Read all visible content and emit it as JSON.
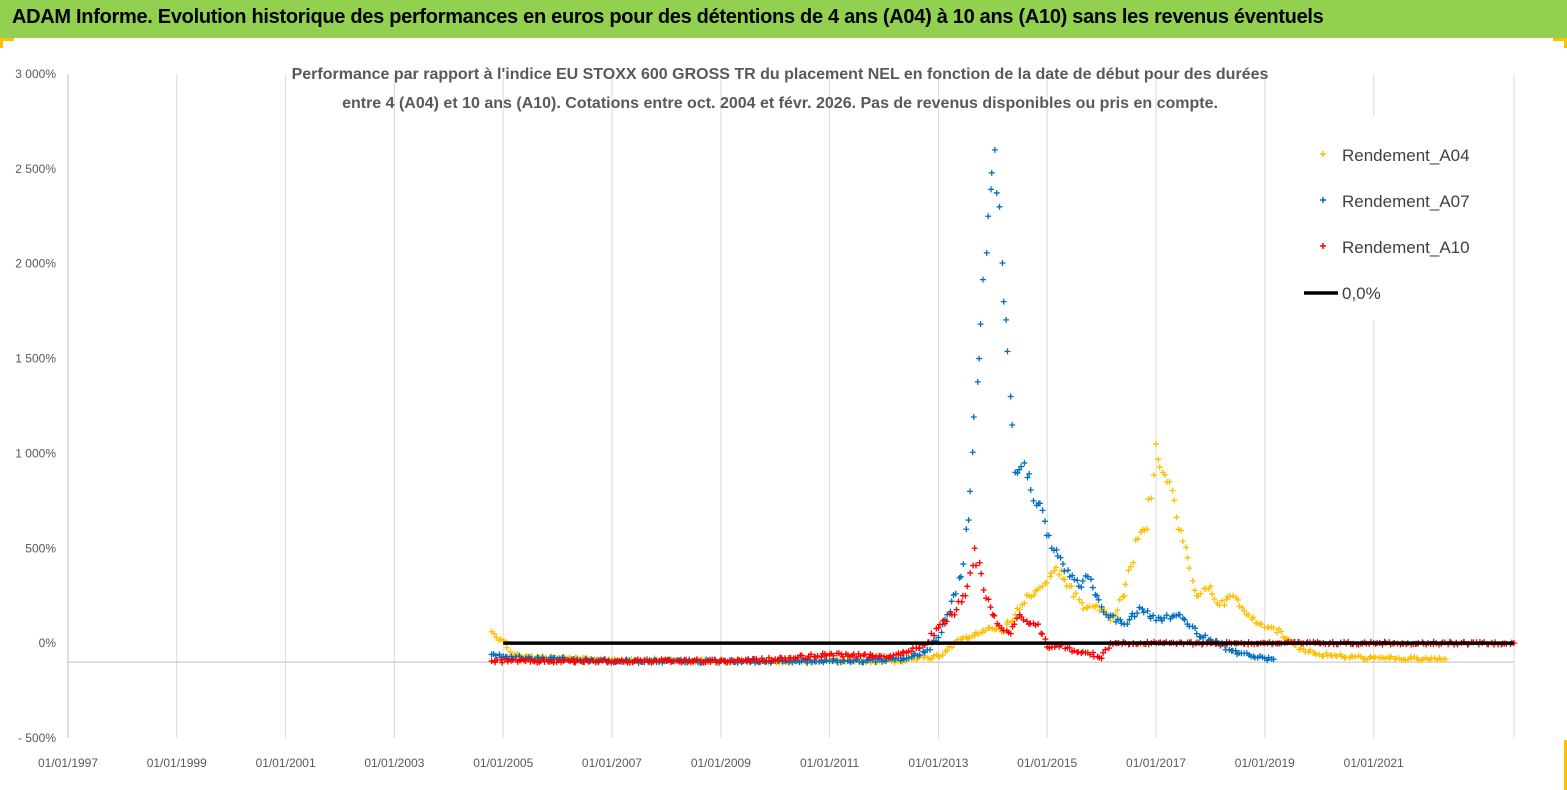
{
  "banner": {
    "title": "ADAM Informe. Evolution historique des performances en euros pour des détentions de 4 ans (A04) à 10 ans (A10) sans les revenus éventuels",
    "background": "#92d050",
    "accent": "#ffc000"
  },
  "chart_data": {
    "type": "scatter",
    "title_lines": [
      "Performance par rapport à l'indice EU STOXX 600 GROSS TR  du placement NEL en fonction de la date de début pour des durées",
      "entre 4 (A04) et 10 ans (A10). Cotations entre oct. 2004 et févr. 2026. Pas de revenus disponibles ou pris en compte."
    ],
    "xlabel": "",
    "ylabel": "",
    "x_range": [
      "1997-01-01",
      "2023-08-01"
    ],
    "x_ticks": [
      "01/01/1997",
      "01/01/1999",
      "01/01/2001",
      "01/01/2003",
      "01/01/2005",
      "01/01/2007",
      "01/01/2009",
      "01/01/2011",
      "01/01/2013",
      "01/01/2015",
      "01/01/2017",
      "01/01/2019",
      "01/01/2021"
    ],
    "y_range": [
      -500,
      3000
    ],
    "y_ticks": [
      {
        "value": 3000,
        "label": "3 000%"
      },
      {
        "value": 2500,
        "label": "2 500%"
      },
      {
        "value": 2000,
        "label": "2 000%"
      },
      {
        "value": 1500,
        "label": "1 500%"
      },
      {
        "value": 1000,
        "label": "1 000%"
      },
      {
        "value": 500,
        "label": "500%"
      },
      {
        "value": 0,
        "label": "0%"
      },
      {
        "value": -500,
        "label": "- 500%"
      }
    ],
    "grid": "vertical",
    "legend_position": "right",
    "series": [
      {
        "name": "Rendement_A04",
        "color": "#ffc000",
        "marker": "+",
        "points": [
          [
            "2004-10-15",
            60
          ],
          [
            "2004-11-15",
            30
          ],
          [
            "2004-12-15",
            20
          ],
          [
            "2005-01-15",
            10
          ],
          [
            "2005-03-01",
            -60
          ],
          [
            "2005-06-01",
            -70
          ],
          [
            "2005-09-01",
            -75
          ],
          [
            "2006-01-01",
            -80
          ],
          [
            "2006-06-01",
            -85
          ],
          [
            "2007-01-01",
            -85
          ],
          [
            "2007-06-01",
            -90
          ],
          [
            "2008-01-01",
            -90
          ],
          [
            "2008-06-01",
            -95
          ],
          [
            "2009-01-01",
            -95
          ],
          [
            "2009-06-01",
            -95
          ],
          [
            "2010-01-01",
            -95
          ],
          [
            "2010-06-01",
            -90
          ],
          [
            "2011-01-01",
            -95
          ],
          [
            "2011-06-01",
            -95
          ],
          [
            "2012-01-01",
            -95
          ],
          [
            "2012-06-01",
            -90
          ],
          [
            "2013-01-01",
            -70
          ],
          [
            "2013-03-01",
            -40
          ],
          [
            "2013-06-01",
            20
          ],
          [
            "2013-09-01",
            40
          ],
          [
            "2013-12-01",
            80
          ],
          [
            "2014-03-01",
            60
          ],
          [
            "2014-06-01",
            150
          ],
          [
            "2014-09-01",
            250
          ],
          [
            "2014-12-01",
            300
          ],
          [
            "2015-03-01",
            400
          ],
          [
            "2015-06-01",
            300
          ],
          [
            "2015-09-01",
            180
          ],
          [
            "2015-12-01",
            200
          ],
          [
            "2016-03-01",
            120
          ],
          [
            "2016-06-01",
            250
          ],
          [
            "2016-09-01",
            550
          ],
          [
            "2016-11-01",
            600
          ],
          [
            "2017-01-01",
            1050
          ],
          [
            "2017-02-15",
            900
          ],
          [
            "2017-04-01",
            850
          ],
          [
            "2017-06-01",
            600
          ],
          [
            "2017-08-01",
            450
          ],
          [
            "2017-10-01",
            250
          ],
          [
            "2018-01-01",
            300
          ],
          [
            "2018-03-01",
            200
          ],
          [
            "2018-06-01",
            250
          ],
          [
            "2018-09-01",
            150
          ],
          [
            "2018-12-01",
            100
          ],
          [
            "2019-03-01",
            80
          ],
          [
            "2019-06-01",
            20
          ],
          [
            "2019-09-01",
            -30
          ],
          [
            "2020-01-01",
            -60
          ],
          [
            "2020-06-01",
            -70
          ],
          [
            "2021-01-01",
            -80
          ],
          [
            "2021-06-01",
            -80
          ],
          [
            "2022-01-01",
            -85
          ],
          [
            "2022-05-01",
            -85
          ]
        ]
      },
      {
        "name": "Rendement_A07",
        "color": "#0070c0",
        "marker": "+",
        "points": [
          [
            "2004-10-15",
            -60
          ],
          [
            "2005-01-01",
            -70
          ],
          [
            "2005-06-01",
            -80
          ],
          [
            "2006-01-01",
            -85
          ],
          [
            "2006-06-01",
            -90
          ],
          [
            "2007-01-01",
            -95
          ],
          [
            "2008-01-01",
            -95
          ],
          [
            "2009-01-01",
            -95
          ],
          [
            "2010-01-01",
            -95
          ],
          [
            "2011-01-01",
            -95
          ],
          [
            "2012-01-01",
            -90
          ],
          [
            "2012-06-01",
            -80
          ],
          [
            "2012-10-01",
            -50
          ],
          [
            "2013-01-01",
            30
          ],
          [
            "2013-03-01",
            150
          ],
          [
            "2013-06-01",
            350
          ],
          [
            "2013-08-01",
            800
          ],
          [
            "2013-10-01",
            1500
          ],
          [
            "2013-12-01",
            2250
          ],
          [
            "2014-01-15",
            2600
          ],
          [
            "2014-02-15",
            2300
          ],
          [
            "2014-03-15",
            1800
          ],
          [
            "2014-05-01",
            1300
          ],
          [
            "2014-06-01",
            900
          ],
          [
            "2014-08-01",
            950
          ],
          [
            "2014-10-01",
            750
          ],
          [
            "2014-12-01",
            700
          ],
          [
            "2015-02-01",
            500
          ],
          [
            "2015-04-01",
            450
          ],
          [
            "2015-06-01",
            350
          ],
          [
            "2015-08-01",
            300
          ],
          [
            "2015-10-01",
            350
          ],
          [
            "2015-12-01",
            250
          ],
          [
            "2016-02-01",
            150
          ],
          [
            "2016-06-01",
            100
          ],
          [
            "2016-10-01",
            180
          ],
          [
            "2017-01-01",
            120
          ],
          [
            "2017-06-01",
            150
          ],
          [
            "2017-10-01",
            50
          ],
          [
            "2018-01-01",
            20
          ],
          [
            "2018-06-01",
            -40
          ],
          [
            "2018-10-01",
            -70
          ],
          [
            "2019-01-01",
            -80
          ],
          [
            "2019-03-01",
            -85
          ]
        ]
      },
      {
        "name": "Rendement_A10",
        "color": "#ff0000",
        "marker": "+",
        "points": [
          [
            "2004-10-15",
            -95
          ],
          [
            "2005-06-01",
            -95
          ],
          [
            "2006-06-01",
            -95
          ],
          [
            "2007-06-01",
            -95
          ],
          [
            "2008-06-01",
            -95
          ],
          [
            "2009-06-01",
            -95
          ],
          [
            "2010-01-01",
            -85
          ],
          [
            "2010-06-01",
            -75
          ],
          [
            "2011-01-01",
            -60
          ],
          [
            "2011-06-01",
            -65
          ],
          [
            "2012-01-01",
            -70
          ],
          [
            "2012-06-01",
            -50
          ],
          [
            "2012-10-01",
            -10
          ],
          [
            "2013-01-01",
            80
          ],
          [
            "2013-04-01",
            150
          ],
          [
            "2013-07-01",
            250
          ],
          [
            "2013-09-01",
            500
          ],
          [
            "2013-11-01",
            280
          ],
          [
            "2014-01-01",
            150
          ],
          [
            "2014-03-01",
            80
          ],
          [
            "2014-05-01",
            50
          ],
          [
            "2014-07-01",
            150
          ],
          [
            "2014-09-01",
            100
          ],
          [
            "2014-11-01",
            100
          ],
          [
            "2015-01-01",
            -20
          ],
          [
            "2015-04-01",
            -10
          ],
          [
            "2015-07-01",
            -40
          ],
          [
            "2015-10-01",
            -50
          ],
          [
            "2016-01-01",
            -80
          ],
          [
            "2016-03-01",
            0
          ],
          [
            "2017-01-01",
            0
          ],
          [
            "2018-01-01",
            0
          ],
          [
            "2019-01-01",
            0
          ],
          [
            "2020-01-01",
            0
          ],
          [
            "2021-01-01",
            0
          ],
          [
            "2022-01-01",
            0
          ],
          [
            "2023-01-01",
            0
          ],
          [
            "2023-08-01",
            0
          ]
        ]
      },
      {
        "name": "0,0%",
        "color": "#000000",
        "marker": "line",
        "points": [
          [
            "2005-01-01",
            0
          ],
          [
            "2023-08-01",
            0
          ]
        ]
      }
    ]
  }
}
